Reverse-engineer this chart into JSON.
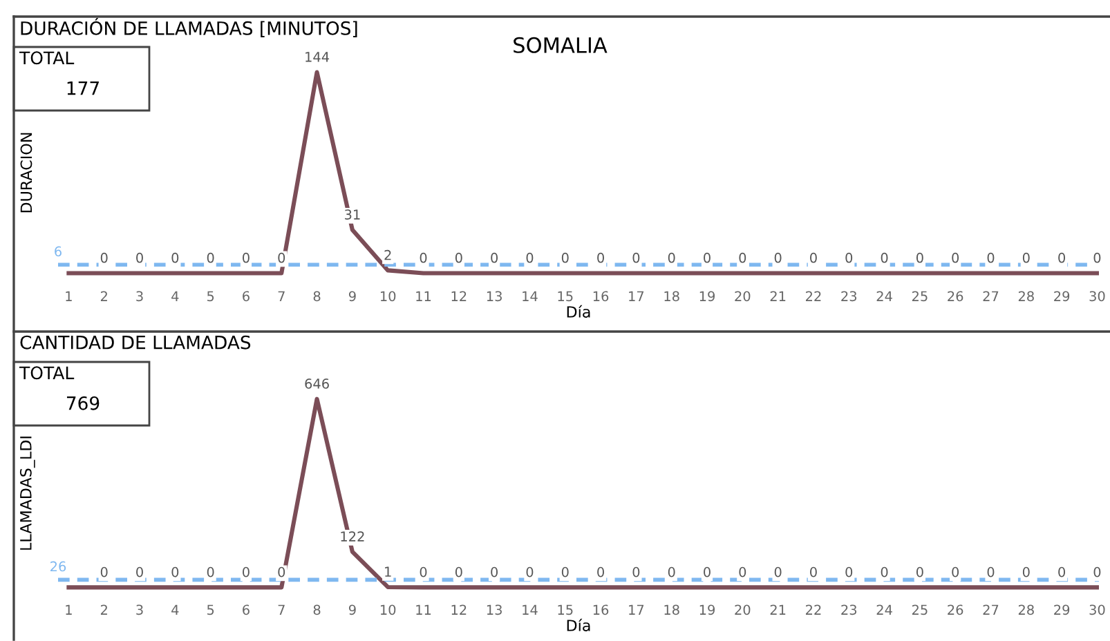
{
  "chart_data": [
    {
      "type": "line",
      "title": "DURACIÓN DE LLAMADAS [MINUTOS]",
      "subtitle": "SOMALIA",
      "xlabel": "Día",
      "ylabel": "DURACION",
      "annotations": [
        "TOTAL",
        "177"
      ],
      "categories": [
        "1",
        "2",
        "3",
        "4",
        "5",
        "6",
        "7",
        "8",
        "9",
        "10",
        "11",
        "12",
        "13",
        "14",
        "15",
        "16",
        "17",
        "18",
        "19",
        "20",
        "21",
        "22",
        "23",
        "24",
        "25",
        "26",
        "27",
        "28",
        "29",
        "30"
      ],
      "series": [
        {
          "color": "#7b4d57",
          "values": [
            0,
            0,
            0,
            0,
            0,
            0,
            0,
            144,
            31,
            2,
            0,
            0,
            0,
            0,
            0,
            0,
            0,
            0,
            0,
            0,
            0,
            0,
            0,
            0,
            0,
            0,
            0,
            0,
            0,
            0
          ],
          "value_labels": [
            null,
            "0",
            "0",
            "0",
            "0",
            "0",
            "0",
            "144",
            "31",
            "2",
            "0",
            "0",
            "0",
            "0",
            "0",
            "0",
            "0",
            "0",
            "0",
            "0",
            "0",
            "0",
            "0",
            "0",
            "0",
            "0",
            "0",
            "0",
            "0",
            "0"
          ]
        }
      ],
      "ref_lines": [
        {
          "axis": "y",
          "value": 6,
          "label": "6",
          "color": "#7fb8f0",
          "line_style": "dashed"
        }
      ],
      "grid": false,
      "legend": false,
      "marker": "none",
      "line_style": "solid"
    },
    {
      "type": "line",
      "title": "CANTIDAD DE LLAMADAS",
      "xlabel": "Día",
      "ylabel": "LLAMADAS_LDI",
      "annotations": [
        "TOTAL",
        "769"
      ],
      "categories": [
        "1",
        "2",
        "3",
        "4",
        "5",
        "6",
        "7",
        "8",
        "9",
        "10",
        "11",
        "12",
        "13",
        "14",
        "15",
        "16",
        "17",
        "18",
        "19",
        "20",
        "21",
        "22",
        "23",
        "24",
        "25",
        "26",
        "27",
        "28",
        "29",
        "30"
      ],
      "series": [
        {
          "color": "#7b4d57",
          "values": [
            0,
            0,
            0,
            0,
            0,
            0,
            0,
            646,
            122,
            1,
            0,
            0,
            0,
            0,
            0,
            0,
            0,
            0,
            0,
            0,
            0,
            0,
            0,
            0,
            0,
            0,
            0,
            0,
            0,
            0
          ],
          "value_labels": [
            null,
            "0",
            "0",
            "0",
            "0",
            "0",
            "0",
            "646",
            "122",
            "1",
            "0",
            "0",
            "0",
            "0",
            "0",
            "0",
            "0",
            "0",
            "0",
            "0",
            "0",
            "0",
            "0",
            "0",
            "0",
            "0",
            "0",
            "0",
            "0",
            "0"
          ]
        }
      ],
      "ref_lines": [
        {
          "axis": "y",
          "value": 26,
          "label": "26",
          "color": "#7fb8f0",
          "line_style": "dashed"
        }
      ],
      "grid": false,
      "legend": false,
      "marker": "none",
      "line_style": "solid"
    }
  ]
}
